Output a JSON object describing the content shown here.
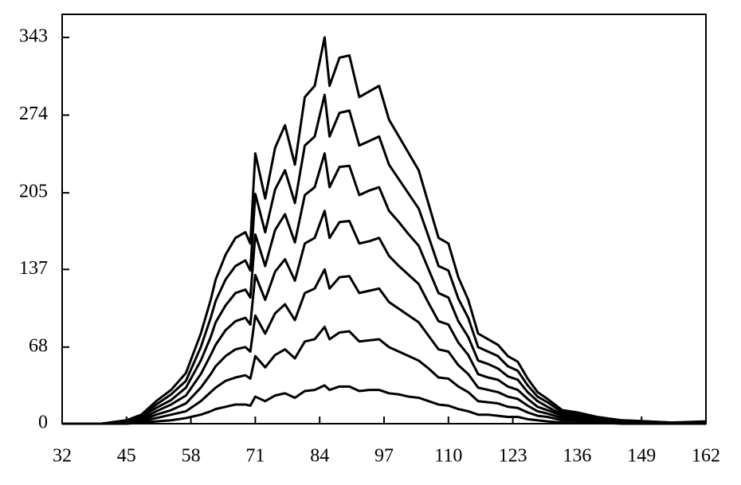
{
  "chart_data": {
    "type": "line",
    "color": "#000000",
    "x": [
      32,
      40,
      45,
      48,
      51,
      54,
      57,
      60,
      62,
      63,
      65,
      67,
      69,
      70,
      71,
      73,
      75,
      77,
      79,
      81,
      83,
      85,
      86,
      88,
      90,
      92,
      94,
      96,
      98,
      100,
      102,
      104,
      106,
      108,
      110,
      112,
      114,
      116,
      118,
      120,
      122,
      124,
      126,
      128,
      130,
      133,
      136,
      140,
      145,
      150,
      155,
      162
    ],
    "series": [
      {
        "values": [
          0,
          0,
          3,
          8,
          20,
          30,
          45,
          80,
          110,
          128,
          150,
          165,
          170,
          160,
          240,
          200,
          245,
          265,
          230,
          290,
          300,
          343,
          300,
          325,
          327,
          290,
          295,
          300,
          270,
          255,
          240,
          225,
          195,
          165,
          160,
          130,
          110,
          80,
          75,
          70,
          60,
          55,
          40,
          28,
          22,
          12,
          10,
          6,
          3,
          2,
          1,
          2
        ]
      },
      {
        "values": [
          0,
          0,
          3,
          7,
          17,
          26,
          38,
          68,
          94,
          109,
          128,
          140,
          145,
          136,
          204,
          170,
          208,
          225,
          196,
          247,
          255,
          292,
          255,
          276,
          278,
          247,
          251,
          255,
          230,
          217,
          204,
          191,
          166,
          140,
          136,
          111,
          94,
          68,
          64,
          60,
          51,
          47,
          34,
          24,
          19,
          10,
          9,
          5,
          3,
          2,
          1,
          1
        ]
      },
      {
        "values": [
          0,
          0,
          2,
          6,
          14,
          21,
          32,
          56,
          77,
          90,
          105,
          116,
          119,
          112,
          168,
          140,
          172,
          186,
          161,
          203,
          210,
          240,
          210,
          228,
          229,
          203,
          207,
          210,
          189,
          179,
          168,
          158,
          137,
          116,
          112,
          91,
          77,
          56,
          53,
          49,
          42,
          39,
          28,
          20,
          15,
          8,
          7,
          4,
          2,
          1,
          1,
          1
        ]
      },
      {
        "values": [
          0,
          0,
          2,
          4,
          11,
          17,
          25,
          44,
          61,
          70,
          83,
          91,
          94,
          88,
          132,
          110,
          135,
          146,
          127,
          160,
          165,
          189,
          165,
          179,
          180,
          160,
          162,
          165,
          149,
          140,
          132,
          124,
          107,
          91,
          88,
          72,
          61,
          44,
          41,
          39,
          33,
          30,
          22,
          15,
          12,
          7,
          6,
          3,
          2,
          1,
          1,
          1
        ]
      },
      {
        "values": [
          0,
          0,
          1,
          3,
          8,
          12,
          18,
          32,
          44,
          51,
          60,
          66,
          68,
          64,
          96,
          80,
          98,
          106,
          92,
          116,
          120,
          137,
          120,
          130,
          131,
          116,
          118,
          120,
          108,
          102,
          96,
          90,
          78,
          66,
          64,
          52,
          44,
          32,
          30,
          28,
          24,
          22,
          16,
          11,
          9,
          5,
          4,
          2,
          1,
          1,
          0,
          1
        ]
      },
      {
        "values": [
          0,
          0,
          1,
          2,
          5,
          8,
          11,
          20,
          28,
          32,
          38,
          41,
          43,
          40,
          60,
          50,
          61,
          66,
          58,
          73,
          75,
          86,
          75,
          81,
          82,
          73,
          74,
          75,
          68,
          64,
          60,
          56,
          49,
          41,
          40,
          33,
          28,
          20,
          19,
          18,
          15,
          14,
          10,
          7,
          6,
          3,
          3,
          2,
          1,
          1,
          0,
          0
        ]
      },
      {
        "values": [
          0,
          0,
          0,
          1,
          2,
          3,
          5,
          8,
          11,
          13,
          15,
          17,
          17,
          16,
          24,
          20,
          25,
          27,
          23,
          29,
          30,
          34,
          30,
          33,
          33,
          29,
          30,
          30,
          27,
          26,
          24,
          23,
          20,
          17,
          16,
          13,
          11,
          8,
          8,
          7,
          6,
          6,
          4,
          3,
          2,
          1,
          1,
          1,
          0,
          0,
          0,
          0
        ]
      }
    ],
    "xlim": [
      32,
      162
    ],
    "xticks": [
      32,
      45,
      58,
      71,
      84,
      97,
      110,
      123,
      136,
      149,
      162
    ],
    "ylim": [
      0,
      363.5
    ],
    "yticks": [
      0,
      68,
      137,
      205,
      274,
      343
    ]
  }
}
